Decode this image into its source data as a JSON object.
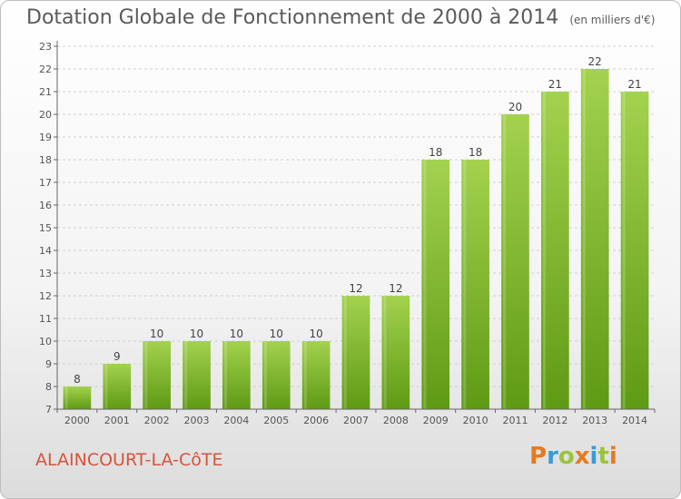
{
  "header": {
    "title": "Dotation Globale de Fonctionnement de 2000 à 2014",
    "subtitle": "(en milliers d'€)"
  },
  "footer": {
    "commune": "ALAINCOURT-LA-CôTE",
    "logo_text": "Proxiti",
    "logo_colors": [
      "#e87a1e",
      "#3a9ad9",
      "#9ac43c",
      "#e87a1e",
      "#3a9ad9",
      "#9ac43c",
      "#e87a1e"
    ]
  },
  "chart_data": {
    "type": "bar",
    "title": "Dotation Globale de Fonctionnement de 2000 à 2014",
    "subtitle": "(en milliers d'€)",
    "xlabel": "",
    "ylabel": "",
    "categories": [
      "2000",
      "2001",
      "2002",
      "2003",
      "2004",
      "2005",
      "2006",
      "2007",
      "2008",
      "2009",
      "2010",
      "2011",
      "2012",
      "2013",
      "2014"
    ],
    "values": [
      8,
      9,
      10,
      10,
      10,
      10,
      10,
      12,
      12,
      18,
      18,
      20,
      21,
      22,
      21
    ],
    "data_labels": [
      "8",
      "9",
      "10",
      "10",
      "10",
      "10",
      "10",
      "12",
      "12",
      "18",
      "18",
      "20",
      "21",
      "22",
      "21"
    ],
    "ylim": [
      7,
      23
    ],
    "yticks": [
      7,
      8,
      9,
      10,
      11,
      12,
      13,
      14,
      15,
      16,
      17,
      18,
      19,
      20,
      21,
      22,
      23
    ],
    "grid": true,
    "bar_color": "#7fb832",
    "bar_color_light": "#a3d24e",
    "bar_color_dark": "#5f9a14",
    "legend": "none"
  }
}
